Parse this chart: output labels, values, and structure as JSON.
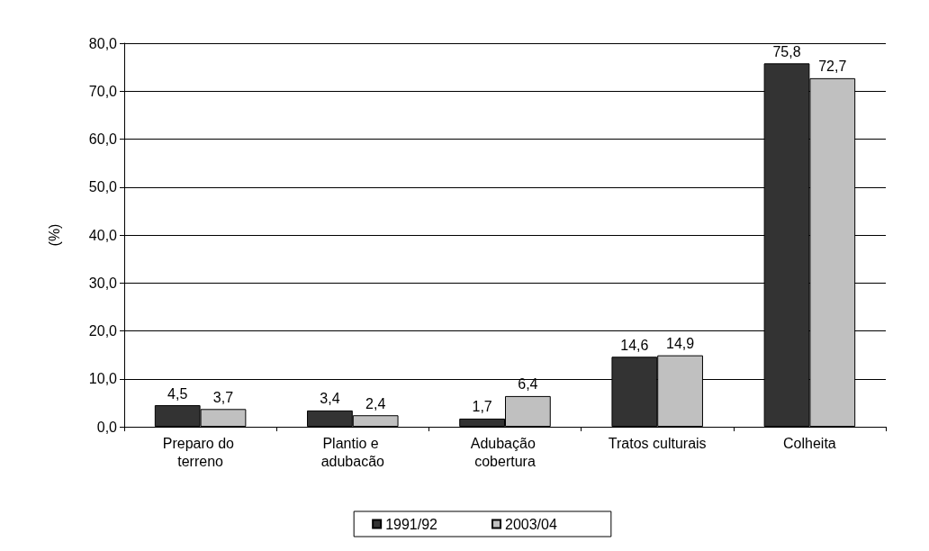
{
  "chart_data": {
    "type": "bar",
    "ylabel": "(%)",
    "categories": [
      "Preparo do terreno",
      "Plantio e adubacão",
      "Adubação cobertura",
      "Tratos culturais",
      "Colheita"
    ],
    "series": [
      {
        "name": "1991/92",
        "color": "#333333",
        "values": [
          4.5,
          3.4,
          1.7,
          14.6,
          75.8
        ],
        "value_labels": [
          "4,5",
          "3,4",
          "1,7",
          "14,6",
          "75,8"
        ]
      },
      {
        "name": "2003/04",
        "color": "#c0c0c0",
        "values": [
          3.7,
          2.4,
          6.4,
          14.9,
          72.7
        ],
        "value_labels": [
          "3,7",
          "2,4",
          "6,4",
          "14,9",
          "72,7"
        ]
      }
    ],
    "ylim": [
      0,
      80
    ],
    "yticks": [
      {
        "value": 0,
        "label": "0,0"
      },
      {
        "value": 10,
        "label": "10,0"
      },
      {
        "value": 20,
        "label": "20,0"
      },
      {
        "value": 30,
        "label": "30,0"
      },
      {
        "value": 40,
        "label": "40,0"
      },
      {
        "value": 50,
        "label": "50,0"
      },
      {
        "value": 60,
        "label": "60,0"
      },
      {
        "value": 70,
        "label": "70,0"
      },
      {
        "value": 80,
        "label": "80,0"
      }
    ],
    "grid": "y",
    "legend": "bottom"
  }
}
